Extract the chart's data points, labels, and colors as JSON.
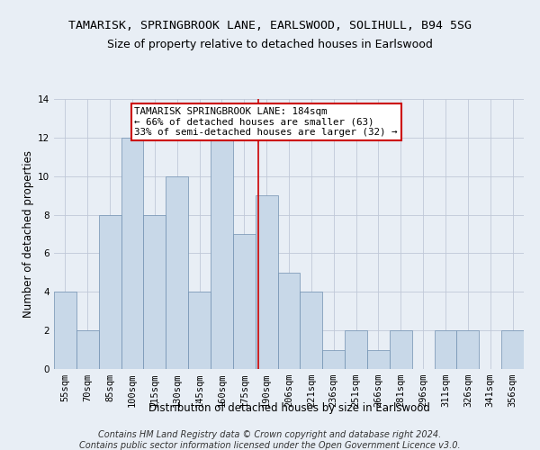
{
  "title": "TAMARISK, SPRINGBROOK LANE, EARLSWOOD, SOLIHULL, B94 5SG",
  "subtitle": "Size of property relative to detached houses in Earlswood",
  "xlabel": "Distribution of detached houses by size in Earlswood",
  "ylabel": "Number of detached properties",
  "footnote1": "Contains HM Land Registry data © Crown copyright and database right 2024.",
  "footnote2": "Contains public sector information licensed under the Open Government Licence v3.0.",
  "categories": [
    "55sqm",
    "70sqm",
    "85sqm",
    "100sqm",
    "115sqm",
    "130sqm",
    "145sqm",
    "160sqm",
    "175sqm",
    "190sqm",
    "206sqm",
    "221sqm",
    "236sqm",
    "251sqm",
    "266sqm",
    "281sqm",
    "296sqm",
    "311sqm",
    "326sqm",
    "341sqm",
    "356sqm"
  ],
  "values": [
    4,
    2,
    8,
    12,
    8,
    10,
    4,
    12,
    7,
    9,
    5,
    4,
    1,
    2,
    1,
    2,
    0,
    2,
    2,
    0,
    2
  ],
  "bar_color": "#c8d8e8",
  "bar_edge_color": "#7090b0",
  "grid_color": "#c0c8d8",
  "reference_line_x": 8.65,
  "reference_line_color": "#cc0000",
  "annotation_text": "TAMARISK SPRINGBROOK LANE: 184sqm\n← 66% of detached houses are smaller (63)\n33% of semi-detached houses are larger (32) →",
  "annotation_box_color": "#ffffff",
  "annotation_box_edge_color": "#cc0000",
  "ylim": [
    0,
    14
  ],
  "yticks": [
    0,
    2,
    4,
    6,
    8,
    10,
    12,
    14
  ],
  "bg_color": "#e8eef5",
  "title_fontsize": 9.5,
  "subtitle_fontsize": 9,
  "axis_label_fontsize": 8.5,
  "tick_fontsize": 7.5,
  "annotation_fontsize": 7.8,
  "footnote_fontsize": 7
}
